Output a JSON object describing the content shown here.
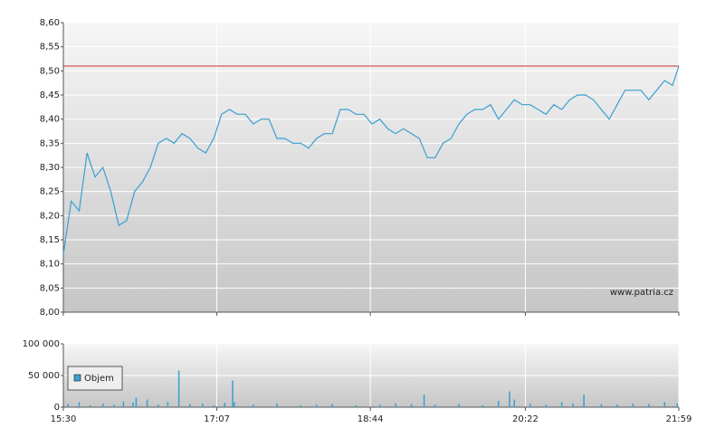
{
  "chart_data": [
    {
      "type": "line",
      "annotation": "www.patria.cz",
      "x": [
        "15:30",
        "15:35",
        "15:40",
        "15:45",
        "15:50",
        "15:55",
        "16:00",
        "16:05",
        "16:10",
        "16:15",
        "16:20",
        "16:25",
        "16:30",
        "16:35",
        "16:40",
        "16:45",
        "16:50",
        "16:55",
        "17:00",
        "17:05",
        "17:10",
        "17:15",
        "17:20",
        "17:25",
        "17:30",
        "17:35",
        "17:40",
        "17:45",
        "17:50",
        "17:55",
        "18:00",
        "18:05",
        "18:10",
        "18:15",
        "18:20",
        "18:25",
        "18:30",
        "18:35",
        "18:40",
        "18:45",
        "18:50",
        "18:55",
        "19:00",
        "19:05",
        "19:10",
        "19:15",
        "19:20",
        "19:25",
        "19:30",
        "19:35",
        "19:40",
        "19:45",
        "19:50",
        "19:55",
        "20:00",
        "20:05",
        "20:10",
        "20:15",
        "20:20",
        "20:25",
        "20:30",
        "20:35",
        "20:40",
        "20:45",
        "20:50",
        "20:55",
        "21:00",
        "21:05",
        "21:10",
        "21:15",
        "21:20",
        "21:25",
        "21:30",
        "21:35",
        "21:40",
        "21:45",
        "21:50",
        "21:55",
        "21:59"
      ],
      "series": [
        {
          "color": "#3a9fd0",
          "values": [
            8.12,
            8.23,
            8.21,
            8.33,
            8.28,
            8.3,
            8.25,
            8.18,
            8.19,
            8.25,
            8.27,
            8.3,
            8.35,
            8.36,
            8.35,
            8.37,
            8.36,
            8.34,
            8.33,
            8.36,
            8.41,
            8.42,
            8.41,
            8.41,
            8.39,
            8.4,
            8.4,
            8.36,
            8.36,
            8.35,
            8.35,
            8.34,
            8.36,
            8.37,
            8.37,
            8.42,
            8.42,
            8.41,
            8.41,
            8.39,
            8.4,
            8.38,
            8.37,
            8.38,
            8.37,
            8.36,
            8.32,
            8.32,
            8.35,
            8.36,
            8.39,
            8.41,
            8.42,
            8.42,
            8.43,
            8.4,
            8.42,
            8.44,
            8.43,
            8.43,
            8.42,
            8.41,
            8.43,
            8.42,
            8.44,
            8.45,
            8.45,
            8.44,
            8.42,
            8.4,
            8.43,
            8.46,
            8.46,
            8.46,
            8.44,
            8.46,
            8.48,
            8.47,
            8.51
          ]
        }
      ],
      "reference_line": {
        "value": 8.51,
        "color": "#d32f2f"
      },
      "xlim": [
        "15:30",
        "21:59"
      ],
      "xticks": [
        "15:30",
        "17:07",
        "18:44",
        "20:22",
        "21:59"
      ],
      "ylim": [
        8.0,
        8.6
      ],
      "yticks": [
        {
          "value": 8.0,
          "label": "8,00"
        },
        {
          "value": 8.05,
          "label": "8,05"
        },
        {
          "value": 8.1,
          "label": "8,10"
        },
        {
          "value": 8.15,
          "label": "8,15"
        },
        {
          "value": 8.2,
          "label": "8,20"
        },
        {
          "value": 8.25,
          "label": "8,25"
        },
        {
          "value": 8.3,
          "label": "8,30"
        },
        {
          "value": 8.35,
          "label": "8,35"
        },
        {
          "value": 8.4,
          "label": "8,40"
        },
        {
          "value": 8.45,
          "label": "8,45"
        },
        {
          "value": 8.5,
          "label": "8,50"
        },
        {
          "value": 8.55,
          "label": "8,55"
        },
        {
          "value": 8.6,
          "label": "8,60"
        }
      ],
      "grid": true
    },
    {
      "type": "bar",
      "x": [
        "15:33",
        "15:40",
        "15:47",
        "15:55",
        "16:02",
        "16:08",
        "16:14",
        "16:16",
        "16:23",
        "16:30",
        "16:36",
        "16:43",
        "16:50",
        "16:58",
        "17:05",
        "17:12",
        "17:17",
        "17:18",
        "17:30",
        "17:45",
        "18:00",
        "18:10",
        "18:20",
        "18:35",
        "18:50",
        "19:00",
        "19:10",
        "19:18",
        "19:25",
        "19:40",
        "19:55",
        "20:05",
        "20:12",
        "20:15",
        "20:25",
        "20:35",
        "20:45",
        "20:52",
        "20:59",
        "21:10",
        "21:20",
        "21:30",
        "21:40",
        "21:50",
        "21:58"
      ],
      "series": [
        {
          "name": "Objem",
          "color": "#3a9fd0",
          "values": [
            5000,
            8000,
            3000,
            6000,
            4000,
            9000,
            7000,
            15000,
            12000,
            4000,
            8000,
            58000,
            5000,
            6000,
            3000,
            7000,
            42000,
            8000,
            4000,
            6000,
            3000,
            4000,
            5000,
            3000,
            4000,
            6000,
            5000,
            20000,
            4000,
            5000,
            3000,
            10000,
            25000,
            12000,
            6000,
            4000,
            8000,
            6000,
            20000,
            5000,
            4000,
            6000,
            5000,
            8000,
            6000
          ]
        }
      ],
      "xlim": [
        "15:30",
        "21:59"
      ],
      "xticks": [
        "15:30",
        "17:07",
        "18:44",
        "20:22",
        "21:59"
      ],
      "ylim": [
        0,
        100000
      ],
      "yticks": [
        0,
        {
          "value": 50000,
          "label": "50 000"
        },
        {
          "value": 100000,
          "label": "100 000"
        }
      ],
      "grid": true,
      "legend": "left"
    }
  ]
}
